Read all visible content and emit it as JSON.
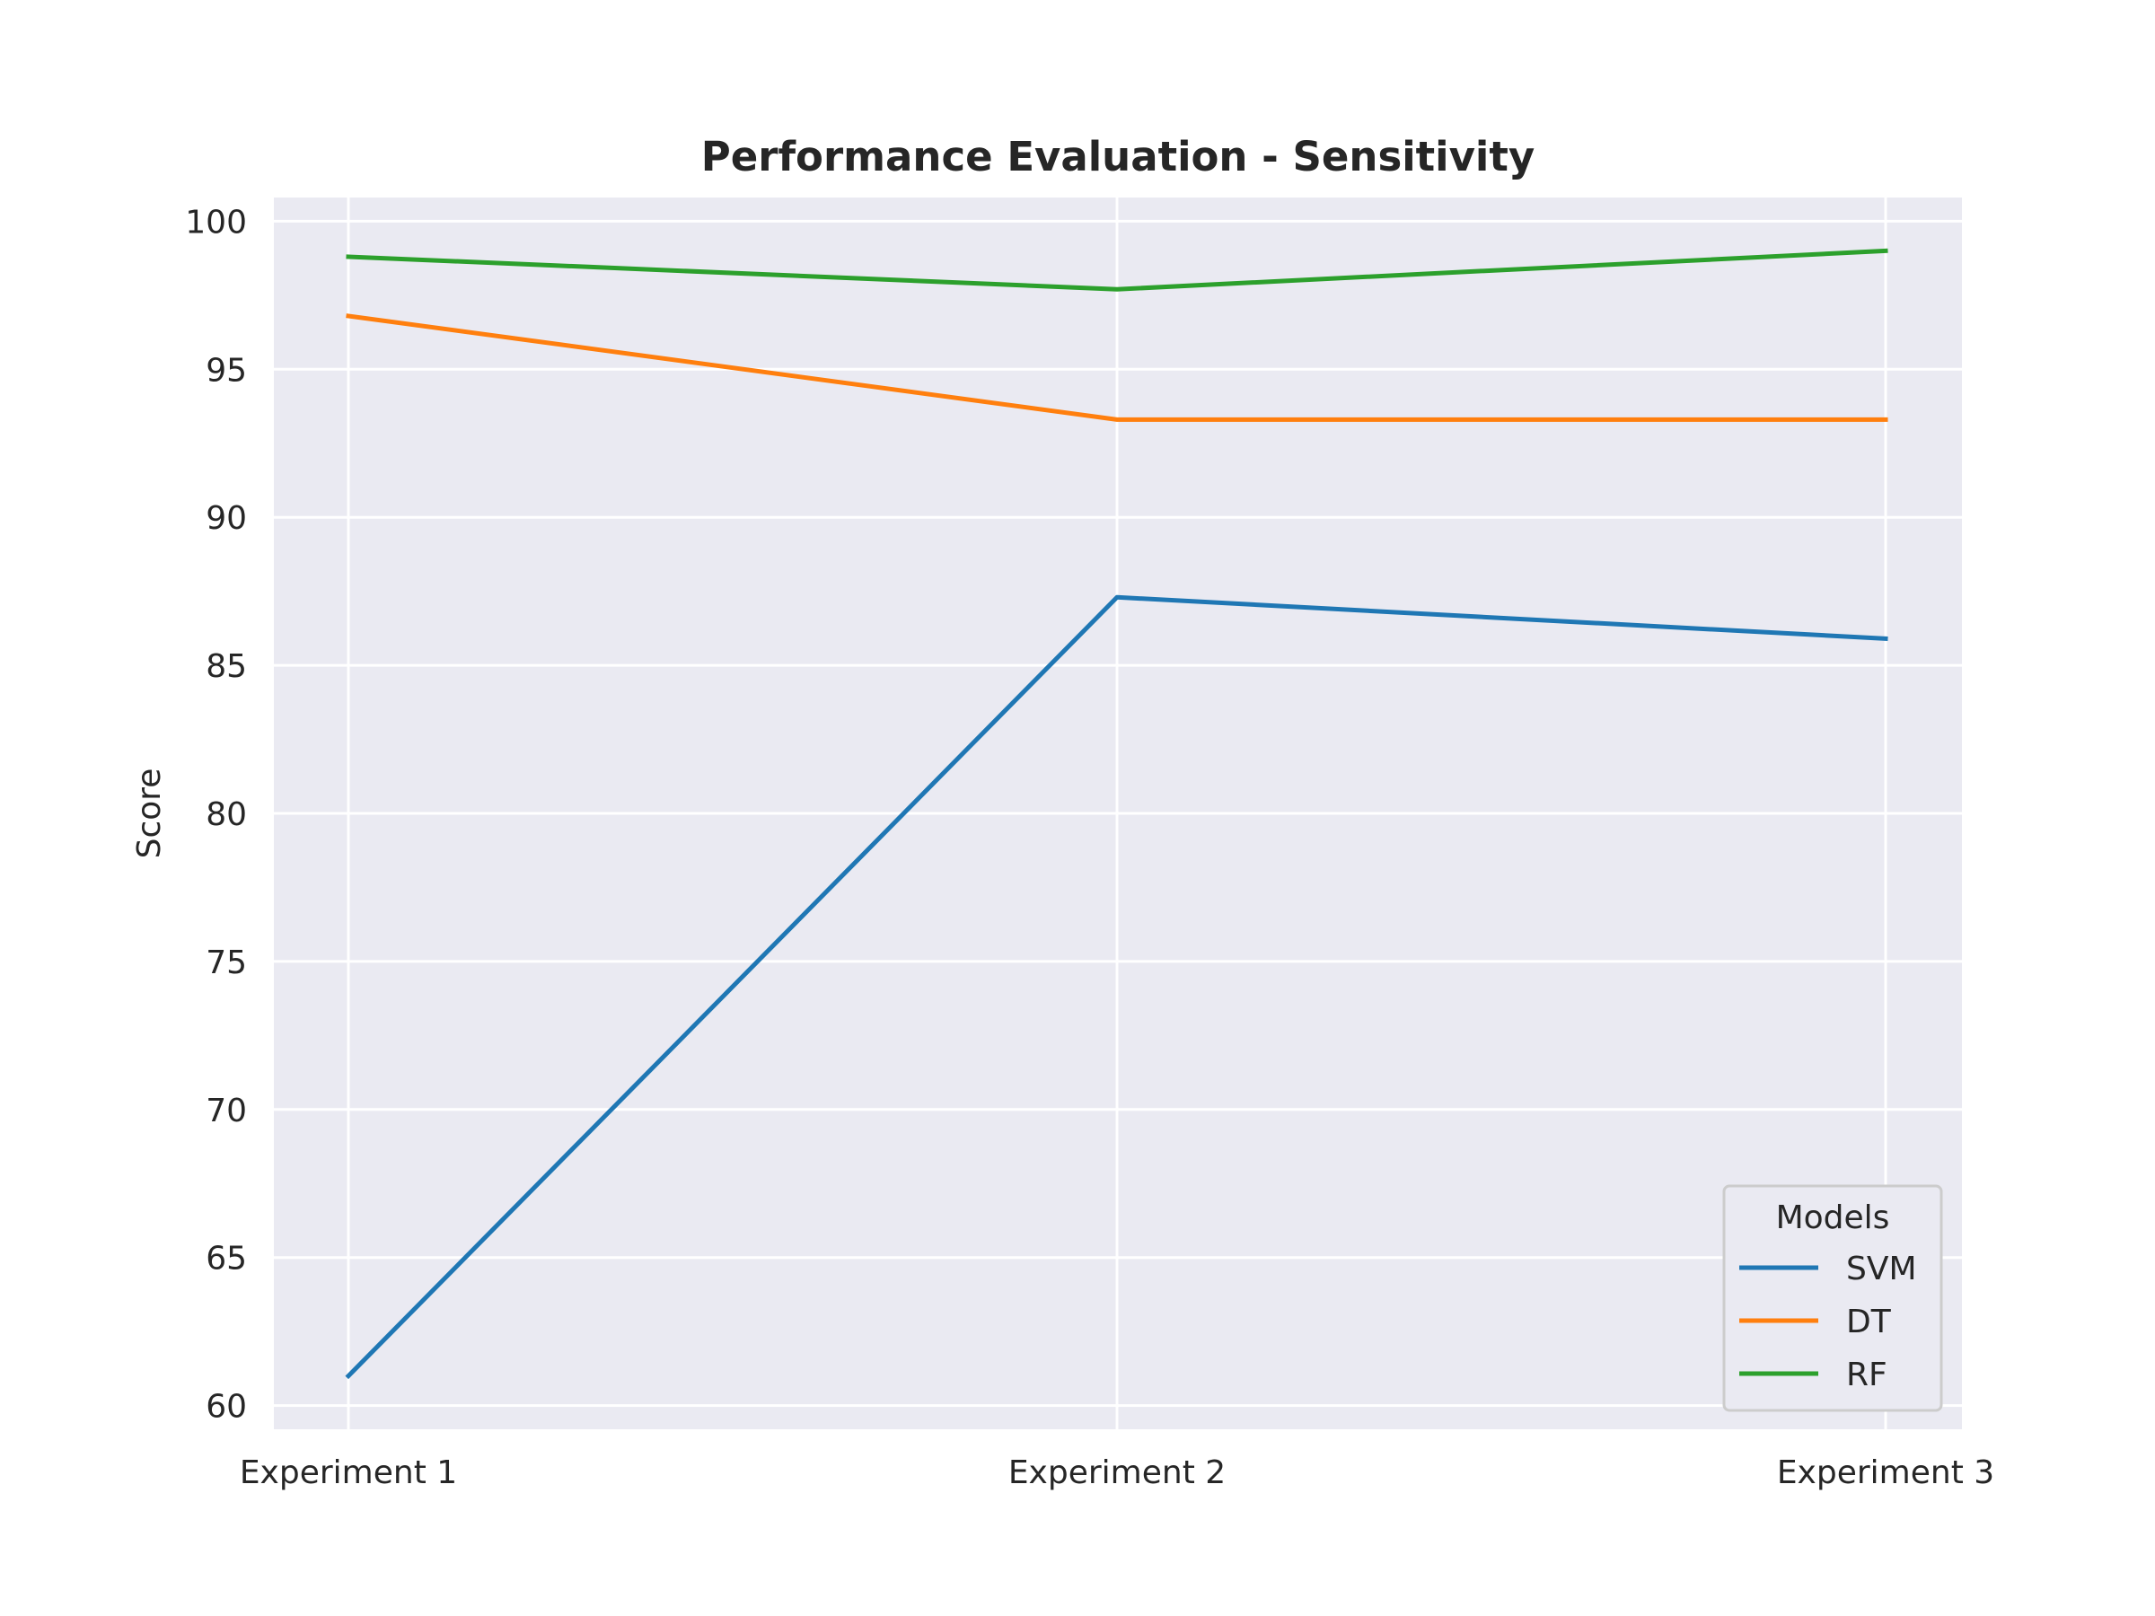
{
  "chart_data": {
    "type": "line",
    "title": "Performance Evaluation - Sensitivity",
    "xlabel": "",
    "ylabel": "Score",
    "categories": [
      "Experiment 1",
      "Experiment 2",
      "Experiment 3"
    ],
    "ylim": [
      59.2,
      100.8
    ],
    "yticks": [
      60,
      65,
      70,
      75,
      80,
      85,
      90,
      95,
      100
    ],
    "grid": true,
    "series": [
      {
        "name": "SVM",
        "values": [
          61.0,
          87.3,
          85.9
        ],
        "color": "#1f77b4"
      },
      {
        "name": "DT",
        "values": [
          96.8,
          93.3,
          93.3
        ],
        "color": "#ff7f0e"
      },
      {
        "name": "RF",
        "values": [
          98.8,
          97.7,
          99.0
        ],
        "color": "#2ca02c"
      }
    ],
    "legend": {
      "title": "Models",
      "position": "bottom-right"
    },
    "background": "#eaeaf2"
  }
}
